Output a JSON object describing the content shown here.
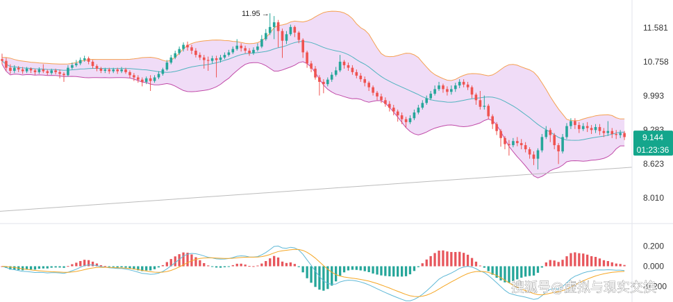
{
  "chart_data": [
    {
      "type": "candlestick",
      "title": "",
      "price_axis": {
        "ticks": [
          "11.581",
          "10.758",
          "9.993",
          "9.283",
          "8.623",
          "8.010"
        ],
        "tick_values": [
          11.581,
          10.758,
          9.993,
          9.283,
          8.623,
          8.01
        ],
        "scale": "log",
        "range": [
          7.6,
          12.3
        ]
      },
      "last_price": {
        "label": "9.144",
        "value": 9.144
      },
      "countdown": "01:23:36",
      "peak_annotation": {
        "label": "11.95",
        "value": 11.95
      },
      "candles": [
        [
          10.82,
          10.78,
          10.95,
          10.7
        ],
        [
          10.78,
          10.62,
          10.85,
          10.55
        ],
        [
          10.62,
          10.55,
          10.7,
          10.48
        ],
        [
          10.55,
          10.62,
          10.68,
          10.5
        ],
        [
          10.62,
          10.58,
          10.66,
          10.52
        ],
        [
          10.58,
          10.54,
          10.64,
          10.48
        ],
        [
          10.54,
          10.6,
          10.64,
          10.5
        ],
        [
          10.6,
          10.56,
          10.63,
          10.5
        ],
        [
          10.56,
          10.52,
          10.6,
          10.46
        ],
        [
          10.52,
          10.58,
          10.63,
          10.48
        ],
        [
          10.58,
          10.54,
          10.7,
          10.5
        ],
        [
          10.54,
          10.5,
          10.58,
          10.45
        ],
        [
          10.5,
          10.56,
          10.6,
          10.46
        ],
        [
          10.56,
          10.52,
          10.6,
          10.47
        ],
        [
          10.52,
          10.48,
          10.58,
          10.38
        ],
        [
          10.48,
          10.45,
          10.52,
          10.3
        ],
        [
          10.45,
          10.62,
          10.68,
          10.42
        ],
        [
          10.62,
          10.68,
          10.74,
          10.58
        ],
        [
          10.68,
          10.72,
          10.8,
          10.64
        ],
        [
          10.72,
          10.8,
          10.86,
          10.68
        ],
        [
          10.8,
          10.84,
          10.9,
          10.76
        ],
        [
          10.84,
          10.76,
          10.88,
          10.7
        ],
        [
          10.76,
          10.66,
          10.8,
          10.6
        ],
        [
          10.66,
          10.6,
          10.7,
          10.54
        ],
        [
          10.6,
          10.55,
          10.64,
          10.5
        ],
        [
          10.55,
          10.58,
          10.62,
          10.5
        ],
        [
          10.58,
          10.54,
          10.62,
          10.48
        ],
        [
          10.54,
          10.58,
          10.62,
          10.5
        ],
        [
          10.58,
          10.54,
          10.62,
          10.48
        ],
        [
          10.54,
          10.58,
          10.64,
          10.5
        ],
        [
          10.58,
          10.52,
          10.62,
          10.48
        ],
        [
          10.52,
          10.45,
          10.56,
          10.38
        ],
        [
          10.45,
          10.4,
          10.5,
          10.32
        ],
        [
          10.4,
          10.35,
          10.45,
          10.28
        ],
        [
          10.35,
          10.3,
          10.4,
          10.2
        ],
        [
          10.3,
          10.38,
          10.42,
          10.25
        ],
        [
          10.38,
          10.32,
          10.45,
          10.1
        ],
        [
          10.32,
          10.4,
          10.45,
          10.28
        ],
        [
          10.4,
          10.48,
          10.54,
          10.36
        ],
        [
          10.48,
          10.58,
          10.62,
          10.44
        ],
        [
          10.58,
          10.74,
          10.8,
          10.55
        ],
        [
          10.74,
          10.86,
          10.92,
          10.7
        ],
        [
          10.86,
          10.96,
          11.02,
          10.82
        ],
        [
          10.96,
          11.06,
          11.12,
          10.92
        ],
        [
          11.06,
          11.16,
          11.22,
          11.0
        ],
        [
          11.16,
          11.1,
          11.24,
          11.02
        ],
        [
          11.1,
          11.02,
          11.16,
          10.94
        ],
        [
          11.02,
          10.92,
          11.08,
          10.86
        ],
        [
          10.92,
          10.86,
          10.98,
          10.8
        ],
        [
          10.86,
          10.8,
          10.92,
          10.6
        ],
        [
          10.8,
          10.78,
          10.88,
          10.55
        ],
        [
          10.78,
          10.84,
          10.9,
          10.72
        ],
        [
          10.84,
          10.8,
          10.9,
          10.4
        ],
        [
          10.8,
          10.86,
          10.92,
          10.74
        ],
        [
          10.86,
          10.92,
          10.98,
          10.82
        ],
        [
          10.92,
          10.98,
          11.04,
          10.88
        ],
        [
          10.98,
          11.06,
          11.12,
          10.94
        ],
        [
          11.06,
          11.14,
          11.3,
          11.02
        ],
        [
          11.14,
          11.08,
          11.2,
          11.0
        ],
        [
          11.08,
          11.02,
          11.14,
          10.96
        ],
        [
          11.02,
          10.96,
          11.08,
          10.9
        ],
        [
          10.96,
          11.04,
          11.1,
          10.92
        ],
        [
          11.04,
          11.12,
          11.2,
          11.0
        ],
        [
          11.12,
          11.3,
          11.4,
          11.08
        ],
        [
          11.3,
          11.45,
          11.55,
          11.26
        ],
        [
          11.45,
          11.6,
          11.95,
          11.4
        ],
        [
          11.6,
          11.72,
          11.88,
          11.3
        ],
        [
          11.72,
          11.5,
          11.78,
          11.1
        ],
        [
          11.5,
          11.26,
          11.56,
          10.85
        ],
        [
          11.26,
          11.42,
          11.5,
          11.18
        ],
        [
          11.42,
          11.6,
          11.66,
          11.38
        ],
        [
          11.6,
          11.46,
          11.64,
          11.35
        ],
        [
          11.46,
          11.28,
          11.5,
          11.2
        ],
        [
          11.28,
          10.98,
          11.32,
          10.85
        ],
        [
          10.98,
          10.72,
          11.02,
          10.62
        ],
        [
          10.72,
          10.6,
          10.78,
          10.52
        ],
        [
          10.6,
          10.4,
          10.66,
          10.35
        ],
        [
          10.4,
          10.3,
          10.45,
          10.0
        ],
        [
          10.3,
          10.25,
          10.36,
          10.05
        ],
        [
          10.25,
          10.35,
          10.4,
          10.2
        ],
        [
          10.35,
          10.46,
          10.52,
          10.3
        ],
        [
          10.46,
          10.56,
          10.64,
          10.42
        ],
        [
          10.56,
          10.76,
          10.92,
          10.52
        ],
        [
          10.76,
          10.68,
          10.8,
          10.6
        ],
        [
          10.68,
          10.62,
          10.74,
          10.55
        ],
        [
          10.62,
          10.52,
          10.68,
          10.46
        ],
        [
          10.52,
          10.44,
          10.58,
          10.38
        ],
        [
          10.44,
          10.36,
          10.5,
          10.3
        ],
        [
          10.36,
          10.28,
          10.42,
          10.2
        ],
        [
          10.28,
          10.18,
          10.32,
          10.1
        ],
        [
          10.18,
          10.06,
          10.22,
          10.0
        ],
        [
          10.06,
          9.98,
          10.1,
          9.9
        ],
        [
          9.98,
          9.9,
          10.04,
          9.84
        ],
        [
          9.9,
          9.82,
          9.96,
          9.76
        ],
        [
          9.82,
          9.74,
          9.88,
          9.66
        ],
        [
          9.74,
          9.66,
          9.8,
          9.58
        ],
        [
          9.66,
          9.58,
          9.7,
          9.45
        ],
        [
          9.58,
          9.5,
          9.64,
          9.4
        ],
        [
          9.5,
          9.44,
          9.55,
          9.33
        ],
        [
          9.44,
          9.52,
          9.58,
          9.4
        ],
        [
          9.52,
          9.64,
          9.7,
          9.48
        ],
        [
          9.64,
          9.74,
          9.8,
          9.6
        ],
        [
          9.74,
          9.84,
          9.9,
          9.7
        ],
        [
          9.84,
          9.94,
          10.0,
          9.8
        ],
        [
          9.94,
          10.04,
          10.1,
          9.9
        ],
        [
          10.04,
          10.14,
          10.22,
          10.0
        ],
        [
          10.14,
          10.22,
          10.3,
          10.1
        ],
        [
          10.22,
          10.14,
          10.26,
          10.06
        ],
        [
          10.14,
          10.08,
          10.2,
          10.0
        ],
        [
          10.08,
          10.14,
          10.22,
          10.02
        ],
        [
          10.14,
          10.22,
          10.28,
          10.08
        ],
        [
          10.22,
          10.3,
          10.36,
          10.16
        ],
        [
          10.3,
          10.24,
          10.36,
          10.18
        ],
        [
          10.24,
          10.18,
          10.3,
          10.12
        ],
        [
          10.18,
          10.02,
          10.22,
          9.94
        ],
        [
          10.02,
          9.9,
          10.06,
          9.8
        ],
        [
          9.9,
          9.76,
          10.1,
          9.7
        ],
        [
          9.76,
          9.78,
          10.0,
          9.7
        ],
        [
          9.78,
          9.56,
          9.82,
          9.5
        ],
        [
          9.56,
          9.4,
          9.6,
          9.3
        ],
        [
          9.4,
          9.26,
          9.44,
          9.18
        ],
        [
          9.26,
          9.12,
          9.3,
          8.95
        ],
        [
          9.12,
          9.0,
          9.16,
          8.9
        ],
        [
          9.0,
          8.98,
          9.08,
          8.78
        ],
        [
          8.98,
          9.06,
          9.12,
          8.94
        ],
        [
          9.06,
          9.02,
          9.14,
          8.96
        ],
        [
          9.02,
          8.98,
          9.1,
          8.9
        ],
        [
          8.98,
          8.9,
          9.04,
          8.84
        ],
        [
          8.9,
          8.8,
          8.94,
          8.72
        ],
        [
          8.8,
          8.72,
          8.86,
          8.6
        ],
        [
          8.72,
          8.88,
          8.92,
          8.52
        ],
        [
          8.88,
          9.14,
          9.2,
          8.84
        ],
        [
          9.14,
          9.28,
          9.36,
          9.1
        ],
        [
          9.28,
          9.18,
          9.32,
          9.04
        ],
        [
          9.18,
          8.98,
          9.22,
          8.9
        ],
        [
          8.98,
          8.86,
          9.02,
          8.62
        ],
        [
          8.86,
          9.14,
          9.2,
          8.82
        ],
        [
          9.14,
          9.36,
          9.42,
          9.1
        ],
        [
          9.36,
          9.46,
          9.52,
          9.3
        ],
        [
          9.46,
          9.38,
          9.52,
          9.3
        ],
        [
          9.38,
          9.3,
          9.44,
          9.22
        ],
        [
          9.3,
          9.36,
          9.42,
          9.26
        ],
        [
          9.36,
          9.32,
          9.44,
          9.24
        ],
        [
          9.32,
          9.28,
          9.38,
          9.2
        ],
        [
          9.28,
          9.34,
          9.4,
          9.22
        ],
        [
          9.34,
          9.26,
          9.4,
          9.18
        ],
        [
          9.26,
          9.22,
          9.32,
          9.14
        ],
        [
          9.22,
          9.26,
          9.46,
          9.16
        ],
        [
          9.26,
          9.2,
          9.32,
          9.12
        ],
        [
          9.2,
          9.18,
          9.28,
          9.1
        ],
        [
          9.18,
          9.22,
          9.28,
          9.12
        ],
        [
          9.22,
          9.14,
          9.26,
          9.08
        ]
      ],
      "candle_fields": [
        "open",
        "close",
        "high",
        "low"
      ],
      "indicators": {
        "bollinger_bands": {
          "period": 20,
          "stddev": 2,
          "middle_color": "#4fb3bf",
          "upper_color": "#f5a050",
          "lower_color": "#c04aa8",
          "fill_color": "#f0dcf7"
        },
        "trendline": {
          "color": "#bbbbbb"
        }
      },
      "colors": {
        "up": "#26a69a",
        "down": "#ef5350",
        "price_tag": "#14a68c"
      }
    },
    {
      "type": "macd",
      "y_axis": {
        "ticks": [
          "0.200",
          "0.000",
          "-0.200"
        ],
        "tick_values": [
          0.2,
          0.0,
          -0.2
        ]
      },
      "colors": {
        "hist_pos": "#e7565c",
        "hist_neg": "#26a69a",
        "macd_line": "#5fb8d6",
        "signal_line": "#f5a623"
      }
    }
  ],
  "watermark": "搜狐号@虚拟与现实交换"
}
